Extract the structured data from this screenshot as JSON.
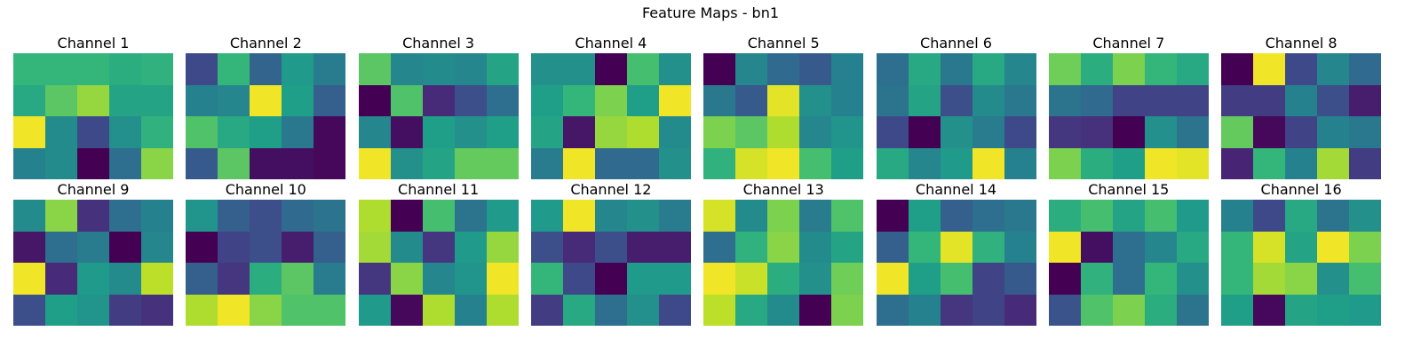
{
  "title": "Feature Maps - bn1",
  "colormap": "viridis",
  "chart_data": {
    "type": "heatmap",
    "title": "Feature Maps - bn1",
    "rows": 4,
    "cols": 5,
    "colormap": "viridis",
    "note_scale": "values are per-channel normalized intensity 0 (dark purple) to 1 (yellow)",
    "channels": [
      {
        "name": "Channel 1",
        "values": [
          [
            0.66,
            0.66,
            0.66,
            0.62,
            0.64
          ],
          [
            0.6,
            0.74,
            0.84,
            0.58,
            0.58
          ],
          [
            0.98,
            0.48,
            0.22,
            0.5,
            0.64
          ],
          [
            0.44,
            0.48,
            0.0,
            0.36,
            0.82
          ]
        ]
      },
      {
        "name": "Channel 2",
        "values": [
          [
            0.22,
            0.66,
            0.32,
            0.54,
            0.42
          ],
          [
            0.44,
            0.46,
            0.98,
            0.56,
            0.3
          ],
          [
            0.72,
            0.6,
            0.56,
            0.4,
            0.02
          ],
          [
            0.28,
            0.74,
            0.04,
            0.04,
            0.02
          ]
        ]
      },
      {
        "name": "Channel 3",
        "values": [
          [
            0.74,
            0.46,
            0.48,
            0.46,
            0.58
          ],
          [
            0.0,
            0.72,
            0.12,
            0.24,
            0.36
          ],
          [
            0.46,
            0.04,
            0.56,
            0.5,
            0.56
          ],
          [
            0.98,
            0.5,
            0.58,
            0.76,
            0.76
          ]
        ]
      },
      {
        "name": "Channel 4",
        "values": [
          [
            0.5,
            0.5,
            0.0,
            0.7,
            0.5
          ],
          [
            0.56,
            0.66,
            0.8,
            0.56,
            0.98
          ],
          [
            0.58,
            0.06,
            0.84,
            0.88,
            0.48
          ],
          [
            0.42,
            0.98,
            0.34,
            0.34,
            0.5
          ]
        ]
      },
      {
        "name": "Channel 5",
        "values": [
          [
            0.0,
            0.46,
            0.34,
            0.28,
            0.44
          ],
          [
            0.4,
            0.28,
            0.96,
            0.5,
            0.44
          ],
          [
            0.8,
            0.74,
            0.88,
            0.46,
            0.52
          ],
          [
            0.64,
            0.94,
            0.98,
            0.7,
            0.56
          ]
        ]
      },
      {
        "name": "Channel 6",
        "values": [
          [
            0.36,
            0.6,
            0.4,
            0.6,
            0.46
          ],
          [
            0.38,
            0.58,
            0.24,
            0.48,
            0.4
          ],
          [
            0.22,
            0.0,
            0.5,
            0.42,
            0.22
          ],
          [
            0.6,
            0.46,
            0.54,
            0.98,
            0.44
          ]
        ]
      },
      {
        "name": "Channel 7",
        "values": [
          [
            0.78,
            0.62,
            0.8,
            0.66,
            0.6
          ],
          [
            0.38,
            0.34,
            0.2,
            0.2,
            0.2
          ],
          [
            0.16,
            0.14,
            0.0,
            0.5,
            0.38
          ],
          [
            0.8,
            0.62,
            0.56,
            0.98,
            0.96
          ]
        ]
      },
      {
        "name": "Channel 8",
        "values": [
          [
            0.0,
            0.98,
            0.22,
            0.46,
            0.34
          ],
          [
            0.18,
            0.18,
            0.44,
            0.24,
            0.08
          ],
          [
            0.76,
            0.02,
            0.2,
            0.44,
            0.4
          ],
          [
            0.1,
            0.66,
            0.44,
            0.86,
            0.18
          ]
        ]
      },
      {
        "name": "Channel 9",
        "values": [
          [
            0.48,
            0.82,
            0.14,
            0.36,
            0.44
          ],
          [
            0.06,
            0.36,
            0.42,
            0.0,
            0.46
          ],
          [
            0.98,
            0.12,
            0.54,
            0.48,
            0.9
          ],
          [
            0.24,
            0.56,
            0.52,
            0.18,
            0.14
          ]
        ]
      },
      {
        "name": "Channel 10",
        "values": [
          [
            0.52,
            0.3,
            0.24,
            0.34,
            0.38
          ],
          [
            0.0,
            0.2,
            0.24,
            0.08,
            0.3
          ],
          [
            0.3,
            0.16,
            0.62,
            0.74,
            0.42
          ],
          [
            0.88,
            0.98,
            0.82,
            0.72,
            0.72
          ]
        ]
      },
      {
        "name": "Channel 11",
        "values": [
          [
            0.88,
            0.0,
            0.7,
            0.38,
            0.54
          ],
          [
            0.86,
            0.48,
            0.16,
            0.54,
            0.84
          ],
          [
            0.16,
            0.82,
            0.46,
            0.52,
            0.98
          ],
          [
            0.54,
            0.02,
            0.88,
            0.44,
            0.88
          ]
        ]
      },
      {
        "name": "Channel 12",
        "values": [
          [
            0.54,
            0.98,
            0.46,
            0.5,
            0.42
          ],
          [
            0.24,
            0.12,
            0.24,
            0.08,
            0.08
          ],
          [
            0.66,
            0.22,
            0.0,
            0.54,
            0.54
          ],
          [
            0.18,
            0.6,
            0.36,
            0.5,
            0.22
          ]
        ]
      },
      {
        "name": "Channel 13",
        "values": [
          [
            0.94,
            0.48,
            0.8,
            0.42,
            0.72
          ],
          [
            0.36,
            0.64,
            0.82,
            0.48,
            0.58
          ],
          [
            0.98,
            0.92,
            0.62,
            0.5,
            0.78
          ],
          [
            0.9,
            0.6,
            0.48,
            0.0,
            0.8
          ]
        ]
      },
      {
        "name": "Channel 14",
        "values": [
          [
            0.0,
            0.56,
            0.3,
            0.36,
            0.4
          ],
          [
            0.3,
            0.66,
            0.96,
            0.64,
            0.44
          ],
          [
            0.98,
            0.56,
            0.7,
            0.2,
            0.28
          ],
          [
            0.36,
            0.44,
            0.16,
            0.2,
            0.12
          ]
        ]
      },
      {
        "name": "Channel 15",
        "values": [
          [
            0.62,
            0.7,
            0.58,
            0.7,
            0.54
          ],
          [
            0.98,
            0.04,
            0.36,
            0.46,
            0.6
          ],
          [
            0.0,
            0.64,
            0.36,
            0.66,
            0.5
          ],
          [
            0.26,
            0.72,
            0.8,
            0.62,
            0.38
          ]
        ]
      },
      {
        "name": "Channel 16",
        "values": [
          [
            0.44,
            0.22,
            0.6,
            0.38,
            0.5
          ],
          [
            0.66,
            0.94,
            0.58,
            0.98,
            0.8
          ],
          [
            0.66,
            0.86,
            0.82,
            0.5,
            0.7
          ],
          [
            0.56,
            0.02,
            0.58,
            0.56,
            0.54
          ]
        ]
      }
    ]
  }
}
